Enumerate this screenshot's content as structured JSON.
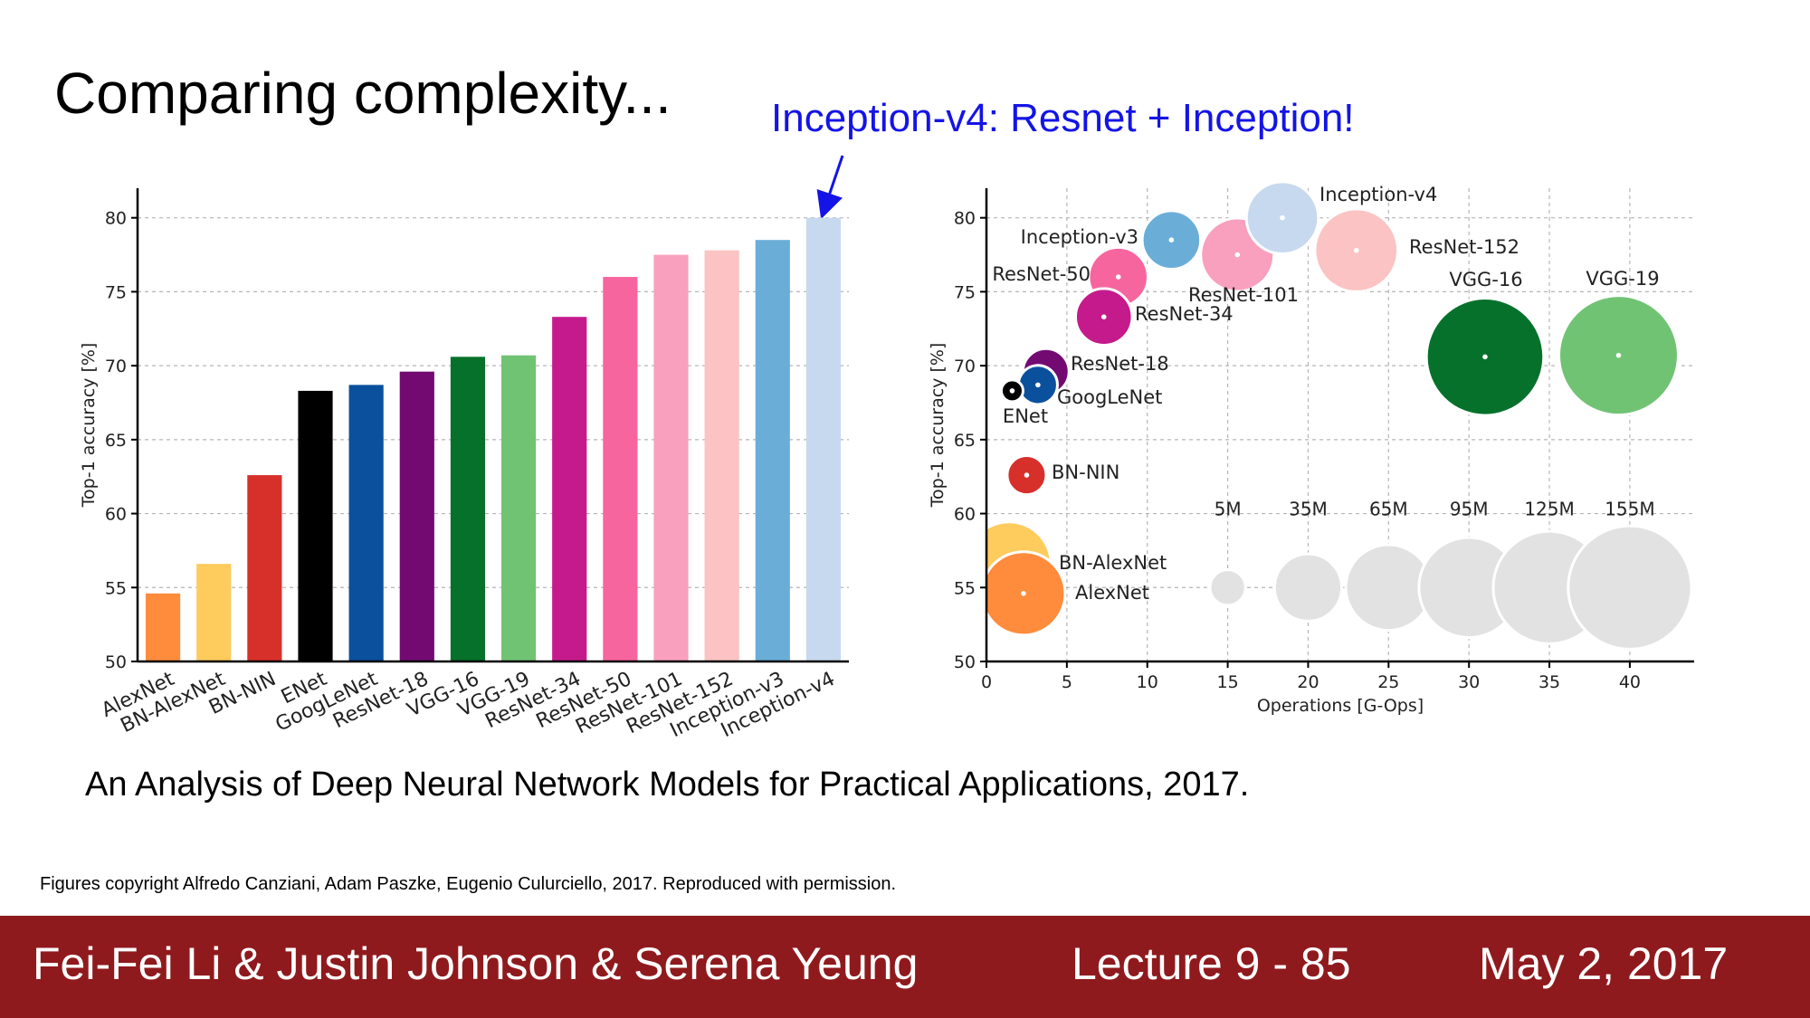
{
  "slide": {
    "title": "Comparing complexity...",
    "callout": "Inception-v4: Resnet + Inception!",
    "caption": "An Analysis of Deep Neural Network Models for Practical Applications, 2017.",
    "copyright": "Figures copyright Alfredo Canziani, Adam Paszke, Eugenio Culurciello, 2017. Reproduced with permission."
  },
  "footer": {
    "authors": "Fei-Fei Li & Justin Johnson & Serena Yeung",
    "lecture": "Lecture 9 - 85",
    "date": "May 2, 2017"
  },
  "colors": {
    "callout": "#1414e6",
    "footer_bg": "#8f1a1d",
    "footer_text": "#ffffff"
  },
  "chart_data": [
    {
      "type": "bar",
      "title": "",
      "xlabel": "",
      "ylabel": "Top-1 accuracy [%]",
      "ylim": [
        50,
        82
      ],
      "yticks": [
        50,
        55,
        60,
        65,
        70,
        75,
        80
      ],
      "grid": true,
      "categories": [
        "AlexNet",
        "BN-AlexNet",
        "BN-NIN",
        "ENet",
        "GoogLeNet",
        "ResNet-18",
        "VGG-16",
        "VGG-19",
        "ResNet-34",
        "ResNet-50",
        "ResNet-101",
        "ResNet-152",
        "Inception-v3",
        "Inception-v4"
      ],
      "values": [
        54.6,
        56.6,
        62.6,
        68.3,
        68.7,
        69.6,
        70.6,
        70.7,
        73.3,
        76.0,
        77.5,
        77.8,
        78.5,
        80.0
      ],
      "colors": [
        "#ff8c3c",
        "#fecb5d",
        "#d7302b",
        "#000000",
        "#0a509d",
        "#730a72",
        "#06712b",
        "#71c374",
        "#c51a8c",
        "#f7659f",
        "#f8a0bd",
        "#fbc3c3",
        "#6aaed8",
        "#c7d9ee"
      ]
    },
    {
      "type": "scatter",
      "title": "",
      "xlabel": "Operations [G-Ops]",
      "ylabel": "Top-1 accuracy [%]",
      "xlim": [
        0,
        44
      ],
      "ylim": [
        50,
        82
      ],
      "xticks": [
        0,
        5,
        10,
        15,
        20,
        25,
        30,
        35,
        40
      ],
      "yticks": [
        50,
        55,
        60,
        65,
        70,
        75,
        80
      ],
      "grid": true,
      "points": [
        {
          "name": "AlexNet",
          "x": 2.3,
          "y": 54.6,
          "params_M": 61,
          "color": "#ff8c3c"
        },
        {
          "name": "BN-AlexNet",
          "x": 1.4,
          "y": 56.6,
          "params_M": 62,
          "color": "#fecb5d"
        },
        {
          "name": "BN-NIN",
          "x": 2.5,
          "y": 62.6,
          "params_M": 7,
          "color": "#d7302b"
        },
        {
          "name": "ENet",
          "x": 1.6,
          "y": 68.3,
          "params_M": 0.4,
          "color": "#000000"
        },
        {
          "name": "GoogLeNet",
          "x": 3.2,
          "y": 68.7,
          "params_M": 7,
          "color": "#0a509d"
        },
        {
          "name": "ResNet-18",
          "x": 3.7,
          "y": 69.6,
          "params_M": 12,
          "color": "#730a72"
        },
        {
          "name": "VGG-16",
          "x": 31.0,
          "y": 70.6,
          "params_M": 138,
          "color": "#06712b"
        },
        {
          "name": "VGG-19",
          "x": 39.3,
          "y": 70.7,
          "params_M": 144,
          "color": "#71c374"
        },
        {
          "name": "ResNet-34",
          "x": 7.3,
          "y": 73.3,
          "params_M": 22,
          "color": "#c51a8c"
        },
        {
          "name": "ResNet-50",
          "x": 8.2,
          "y": 76.0,
          "params_M": 25,
          "color": "#f7659f"
        },
        {
          "name": "ResNet-101",
          "x": 15.6,
          "y": 77.5,
          "params_M": 44,
          "color": "#f8a0bd"
        },
        {
          "name": "ResNet-152",
          "x": 23.0,
          "y": 77.8,
          "params_M": 60,
          "color": "#fbc3c3"
        },
        {
          "name": "Inception-v3",
          "x": 11.5,
          "y": 78.5,
          "params_M": 24,
          "color": "#6aaed8"
        },
        {
          "name": "Inception-v4",
          "x": 18.4,
          "y": 80.0,
          "params_M": 42,
          "color": "#c7d9ee"
        }
      ],
      "size_legend": {
        "labels": [
          "5M",
          "35M",
          "65M",
          "95M",
          "125M",
          "155M"
        ],
        "values_M": [
          5,
          35,
          65,
          95,
          125,
          155
        ],
        "x": [
          15,
          20,
          25,
          30,
          35,
          40
        ],
        "y": 55,
        "color": "#e2e2e2"
      }
    }
  ]
}
